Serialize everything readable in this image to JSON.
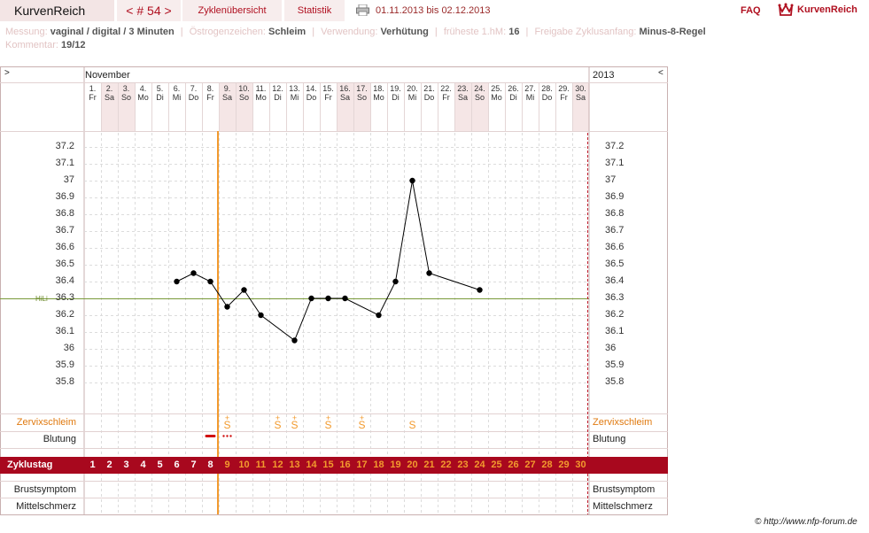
{
  "header": {
    "brand": "KurvenReich",
    "cycle": "< # 54 >",
    "tabs": [
      "Zyklenübersicht",
      "Statistik"
    ],
    "date_from": "01.11.2013",
    "date_sep": "bis",
    "date_to": "02.12.2013",
    "faq": "FAQ",
    "logo_text": "KurvenReich"
  },
  "info": {
    "messung_k": "Messung:",
    "messung_v": "vaginal / digital / 3 Minuten",
    "oestro_k": "Östrogenzeichen:",
    "oestro_v": "Schleim",
    "verw_k": "Verwendung:",
    "verw_v": "Verhütung",
    "fh_k": "früheste 1.hM:",
    "fh_v": "16",
    "frei_k": "Freigabe Zyklusanfang:",
    "frei_v": "Minus-8-Regel",
    "komm_k": "Kommentar:",
    "komm_v": "19/12"
  },
  "chart": {
    "left_arrow": ">",
    "right_arrow": "<",
    "month": "November",
    "year": "2013",
    "hl_label": "HiLi",
    "rows": {
      "cervix": "Zervixschleim",
      "bleeding": "Blutung",
      "cycle_day": "Zyklustag",
      "breast": "Brustsymptom",
      "midpain": "Mittelschmerz"
    }
  },
  "chart_data": {
    "type": "line",
    "days": [
      {
        "d": "1.",
        "w": "Fr"
      },
      {
        "d": "2.",
        "w": "Sa"
      },
      {
        "d": "3.",
        "w": "So"
      },
      {
        "d": "4.",
        "w": "Mo"
      },
      {
        "d": "5.",
        "w": "Di"
      },
      {
        "d": "6.",
        "w": "Mi"
      },
      {
        "d": "7.",
        "w": "Do"
      },
      {
        "d": "8.",
        "w": "Fr"
      },
      {
        "d": "9.",
        "w": "Sa"
      },
      {
        "d": "10.",
        "w": "So"
      },
      {
        "d": "11.",
        "w": "Mo"
      },
      {
        "d": "12.",
        "w": "Di"
      },
      {
        "d": "13.",
        "w": "Mi"
      },
      {
        "d": "14.",
        "w": "Do"
      },
      {
        "d": "15.",
        "w": "Fr"
      },
      {
        "d": "16.",
        "w": "Sa"
      },
      {
        "d": "17.",
        "w": "So"
      },
      {
        "d": "18.",
        "w": "Mo"
      },
      {
        "d": "19.",
        "w": "Di"
      },
      {
        "d": "20.",
        "w": "Mi"
      },
      {
        "d": "21.",
        "w": "Do"
      },
      {
        "d": "22.",
        "w": "Fr"
      },
      {
        "d": "23.",
        "w": "Sa"
      },
      {
        "d": "24.",
        "w": "So"
      },
      {
        "d": "25.",
        "w": "Mo"
      },
      {
        "d": "26.",
        "w": "Di"
      },
      {
        "d": "27.",
        "w": "Mi"
      },
      {
        "d": "28.",
        "w": "Do"
      },
      {
        "d": "29.",
        "w": "Fr"
      },
      {
        "d": "30.",
        "w": "Sa"
      }
    ],
    "weekend_days": [
      2,
      3,
      9,
      10,
      16,
      17,
      23,
      24,
      30
    ],
    "cycle_days": [
      1,
      2,
      3,
      4,
      5,
      6,
      7,
      8,
      9,
      10,
      11,
      12,
      13,
      14,
      15,
      16,
      17,
      18,
      19,
      20,
      21,
      22,
      23,
      24,
      25,
      26,
      27,
      28,
      29,
      30
    ],
    "temperatures": [
      {
        "day": 6,
        "t": 36.4
      },
      {
        "day": 7,
        "t": 36.45
      },
      {
        "day": 8,
        "t": 36.4
      },
      {
        "day": 9,
        "t": 36.25
      },
      {
        "day": 10,
        "t": 36.35
      },
      {
        "day": 11,
        "t": 36.2
      },
      {
        "day": 13,
        "t": 36.05
      },
      {
        "day": 14,
        "t": 36.3
      },
      {
        "day": 15,
        "t": 36.3
      },
      {
        "day": 16,
        "t": 36.3
      },
      {
        "day": 18,
        "t": 36.2
      },
      {
        "day": 19,
        "t": 36.4
      },
      {
        "day": 20,
        "t": 37.0
      },
      {
        "day": 21,
        "t": 36.45
      },
      {
        "day": 24,
        "t": 36.35
      }
    ],
    "y_ticks": [
      "37.2",
      "37.1",
      "37",
      "36.9",
      "36.8",
      "36.7",
      "36.6",
      "36.5",
      "36.4",
      "36.3",
      "36.2",
      "36.1",
      "36",
      "35.9",
      "35.8"
    ],
    "ylim": [
      35.8,
      37.2
    ],
    "coverline": 36.3,
    "marker_day": 9,
    "cervix_marks": [
      {
        "day": 9,
        "sym": "S",
        "plus": "+"
      },
      {
        "day": 12,
        "sym": "S",
        "plus": "+"
      },
      {
        "day": 13,
        "sym": "S",
        "plus": "+"
      },
      {
        "day": 15,
        "sym": "S",
        "plus": "+"
      },
      {
        "day": 17,
        "sym": "S",
        "plus": "+"
      },
      {
        "day": 20,
        "sym": "S",
        "plus": ""
      }
    ],
    "bleeding": [
      {
        "day": 8,
        "kind": "strong"
      },
      {
        "day": 9,
        "kind": "spotting"
      }
    ],
    "colors": {
      "accent": "#a8081e",
      "orange": "#f29a2e",
      "coverline": "#7a9a3a",
      "weekend": "#f5e6e6",
      "grid": "#d8d8d8"
    }
  }
}
